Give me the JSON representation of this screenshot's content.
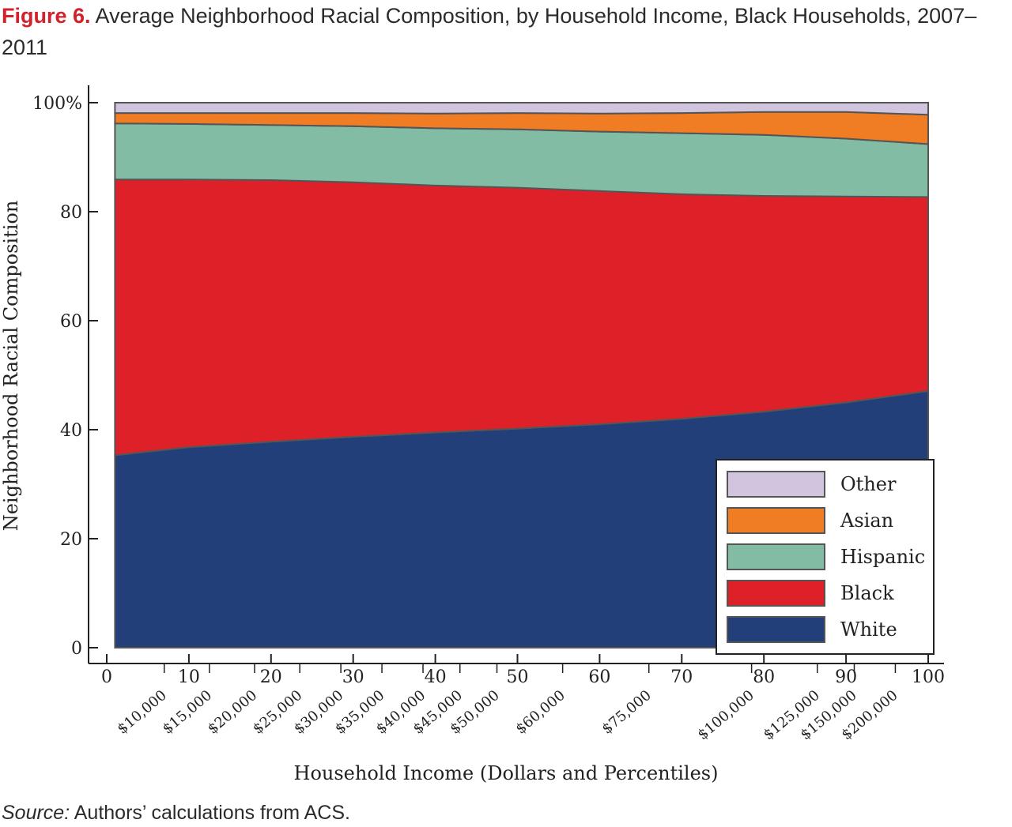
{
  "title": {
    "figure_label": "Figure 6.",
    "text": "Average Neighborhood Racial Composition, by Household Income, Black Households, 2007–2011"
  },
  "source": {
    "label": "Source:",
    "text": "Authors’ calculations from ACS."
  },
  "chart_data": {
    "type": "area",
    "stacked": true,
    "xlabel": "Household Income (Dollars and Percentiles)",
    "ylabel": "Neighborhood Racial Composition",
    "xlim": [
      0,
      100
    ],
    "ylim": [
      0,
      100
    ],
    "x_ticks": [
      0,
      10,
      20,
      30,
      40,
      50,
      60,
      70,
      80,
      90,
      100
    ],
    "y_ticks": [
      0,
      20,
      40,
      60,
      80,
      100
    ],
    "y_tick_labels": [
      "0",
      "20",
      "40",
      "60",
      "80",
      "100%"
    ],
    "dollar_ticks": [
      {
        "label": "$10,000",
        "x": 7
      },
      {
        "label": "$15,000",
        "x": 12.5
      },
      {
        "label": "$20,000",
        "x": 18
      },
      {
        "label": "$25,000",
        "x": 23.5
      },
      {
        "label": "$30,000",
        "x": 28.5
      },
      {
        "label": "$35,000",
        "x": 33.5
      },
      {
        "label": "$40,000",
        "x": 38.5
      },
      {
        "label": "$45,000",
        "x": 43
      },
      {
        "label": "$50,000",
        "x": 47.5
      },
      {
        "label": "$60,000",
        "x": 55.5
      },
      {
        "label": "$75,000",
        "x": 66
      },
      {
        "label": "$100,000",
        "x": 78.5
      },
      {
        "label": "$125,000",
        "x": 86.5
      },
      {
        "label": "$150,000",
        "x": 91
      },
      {
        "label": "$200,000",
        "x": 96
      }
    ],
    "x": [
      1,
      10,
      20,
      30,
      40,
      50,
      60,
      70,
      80,
      90,
      100
    ],
    "series": [
      {
        "name": "White",
        "color": "#233f7a",
        "values": [
          35.3,
          36.8,
          37.8,
          38.7,
          39.5,
          40.2,
          41.0,
          42.0,
          43.3,
          45.0,
          47.1
        ]
      },
      {
        "name": "Black",
        "color": "#de2128",
        "values": [
          50.6,
          49.1,
          48.0,
          46.7,
          45.3,
          44.2,
          42.8,
          41.2,
          39.6,
          37.8,
          35.6
        ]
      },
      {
        "name": "Hispanic",
        "color": "#83bca4",
        "values": [
          10.3,
          10.2,
          10.1,
          10.3,
          10.5,
          10.7,
          10.9,
          11.2,
          11.2,
          10.6,
          9.7
        ]
      },
      {
        "name": "Asian",
        "color": "#f07c23",
        "values": [
          1.9,
          2.0,
          2.2,
          2.4,
          2.7,
          3.0,
          3.3,
          3.7,
          4.2,
          4.9,
          5.4
        ]
      },
      {
        "name": "Other",
        "color": "#d1c4df",
        "values": [
          1.9,
          1.9,
          1.9,
          1.9,
          2.0,
          1.9,
          2.0,
          1.9,
          1.7,
          1.7,
          2.2
        ]
      }
    ],
    "legend": {
      "position": "bottom-right",
      "order": [
        "Other",
        "Asian",
        "Hispanic",
        "Black",
        "White"
      ]
    },
    "grid": false
  }
}
